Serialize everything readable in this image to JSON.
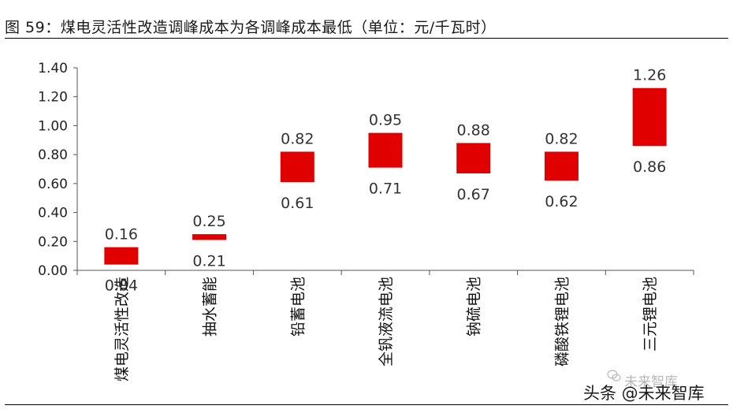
{
  "header": {
    "title": "图 59：煤电灵活性改造调峰成本为各调峰成本最低（单位：元/千瓦时）"
  },
  "watermark": {
    "line1": "未来智库",
    "line2": "头条 @未来智库"
  },
  "chart_data": {
    "type": "floating-bar",
    "title": "",
    "xlabel": "",
    "ylabel": "",
    "ylim": [
      0,
      1.4
    ],
    "yticks": [
      "0.00",
      "0.20",
      "0.40",
      "0.60",
      "0.80",
      "1.00",
      "1.20",
      "1.40"
    ],
    "ytick_values": [
      0,
      0.2,
      0.4,
      0.6,
      0.8,
      1.0,
      1.2,
      1.4
    ],
    "grid": false,
    "legend": "none",
    "bar_color": "#e00000",
    "categories": [
      "煤电灵活性改造",
      "抽水蓄能",
      "铅蓄电池",
      "全钒液流电池",
      "钠硫电池",
      "磷酸铁锂电池",
      "三元锂电池"
    ],
    "low": [
      0.04,
      0.21,
      0.61,
      0.71,
      0.67,
      0.62,
      0.86
    ],
    "high": [
      0.16,
      0.25,
      0.82,
      0.95,
      0.88,
      0.82,
      1.26
    ],
    "low_labels": [
      "0.04",
      "0.21",
      "0.61",
      "0.71",
      "0.67",
      "0.62",
      "0.86"
    ],
    "high_labels": [
      "0.16",
      "0.25",
      "0.82",
      "0.95",
      "0.88",
      "0.82",
      "1.26"
    ]
  }
}
